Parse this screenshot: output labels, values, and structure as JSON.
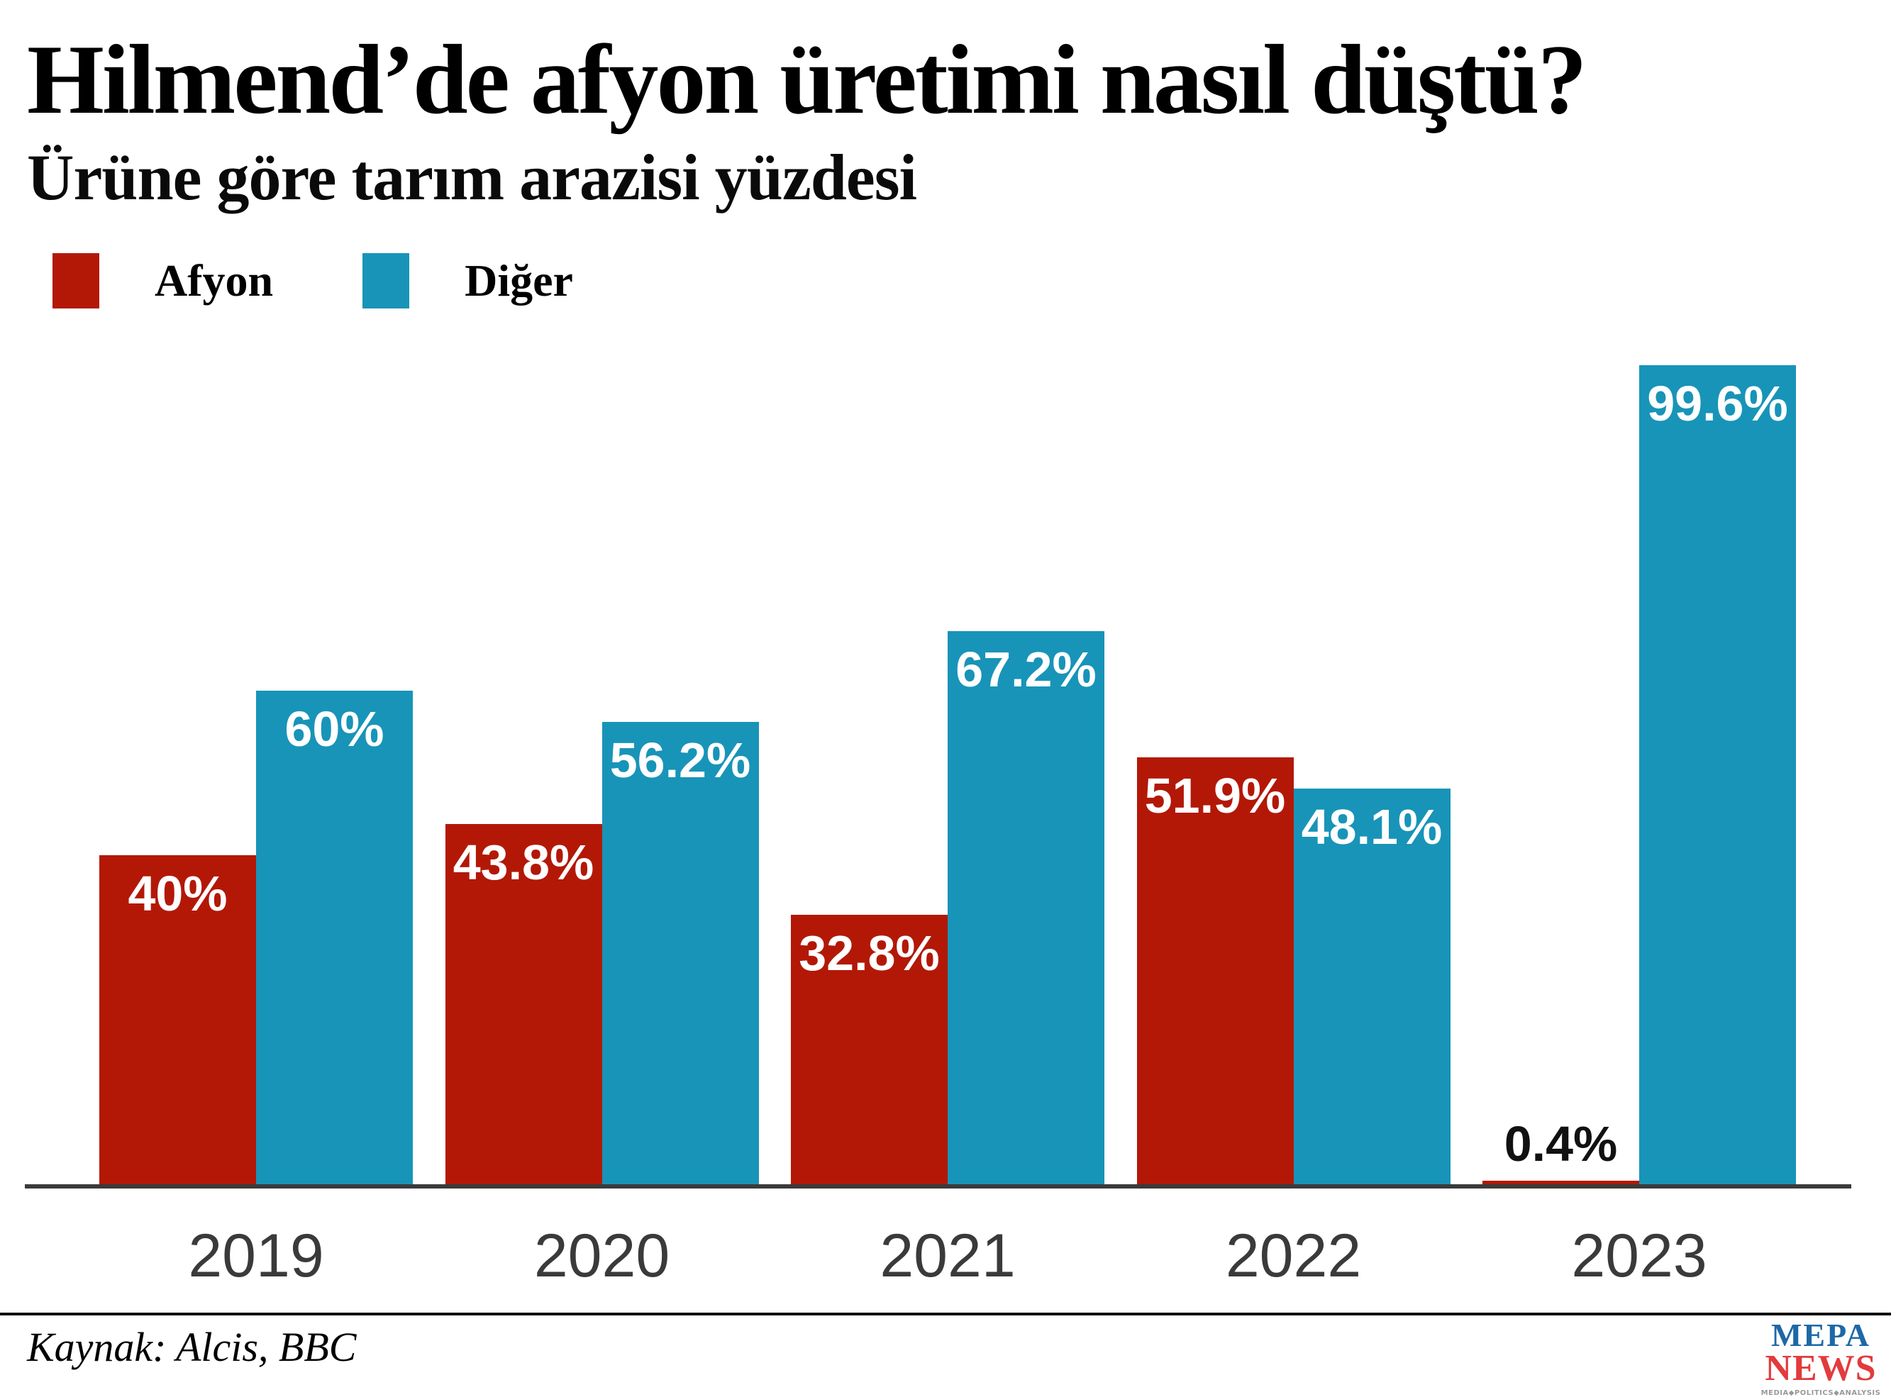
{
  "header": {
    "title": "Hilmend’de afyon üretimi nasıl düştü?",
    "subtitle": "Ürüne göre tarım arazisi yüzdesi"
  },
  "legend": {
    "items": [
      {
        "label": "Afyon",
        "color": "#b31807"
      },
      {
        "label": "Diğer",
        "color": "#1894b8"
      }
    ]
  },
  "footer": {
    "source": "Kaynak: Alcis, BBC"
  },
  "logo": {
    "top": "MEPA",
    "bottom": "NEWS",
    "tagline": "MEDIA◆POLITICS◆ANALYSIS",
    "top_color": "#1e68a7",
    "bottom_color": "#e23b3d",
    "tagline_color": "#999999"
  },
  "chart_data": {
    "type": "bar",
    "title": "Hilmend’de afyon üretimi nasıl düştü?",
    "subtitle": "Ürüne göre tarım arazisi yüzdesi",
    "categories": [
      "2019",
      "2020",
      "2021",
      "2022",
      "2023"
    ],
    "series": [
      {
        "name": "Afyon",
        "color": "#b31807",
        "values": [
          40,
          43.8,
          32.8,
          51.9,
          0.4
        ],
        "labels": [
          "40%",
          "43.8%",
          "32.8%",
          "51.9%",
          "0.4%"
        ]
      },
      {
        "name": "Diğer",
        "color": "#1894b8",
        "values": [
          60,
          56.2,
          67.2,
          48.1,
          99.6
        ],
        "labels": [
          "60%",
          "56.2%",
          "67.2%",
          "48.1%",
          "99.6%"
        ]
      }
    ],
    "xlabel": "",
    "ylabel": "",
    "ylim": [
      0,
      100
    ],
    "grid": false,
    "legend_position": "top-left",
    "value_labels": "inside-top",
    "axis_color": "#3a3a3a",
    "tick_label_color": "#3a3a3a"
  }
}
